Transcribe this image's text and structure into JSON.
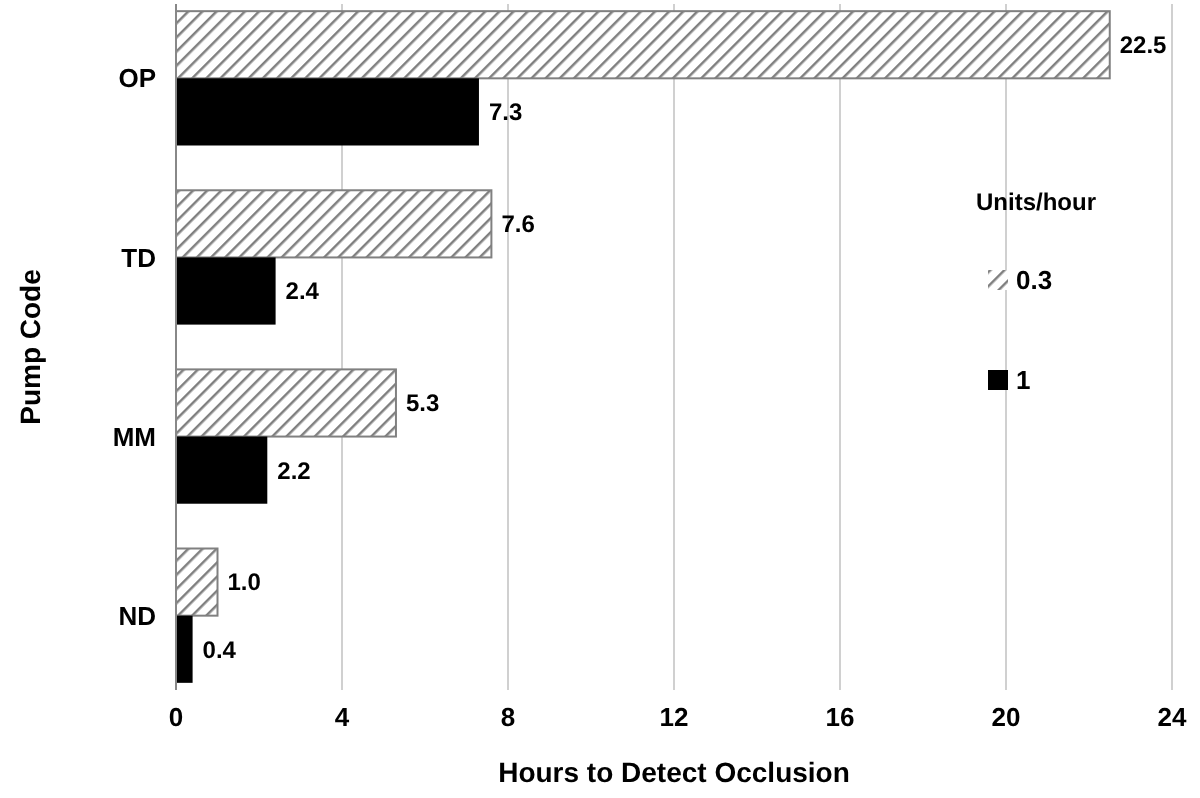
{
  "chart_data": {
    "type": "bar",
    "orientation": "horizontal",
    "xlabel": "Hours to Detect Occlusion",
    "ylabel": "Pump Code",
    "legend_title": "Units/hour",
    "categories": [
      "OP",
      "TD",
      "MM",
      "ND"
    ],
    "series": [
      {
        "name": "0.3",
        "color": "#808080",
        "values": [
          22.5,
          7.6,
          5.3,
          1.0
        ]
      },
      {
        "name": "1",
        "color": "#000000",
        "values": [
          7.3,
          2.4,
          2.2,
          0.4
        ]
      }
    ],
    "value_labels": [
      [
        "22.5",
        "7.6",
        "5.3",
        "1.0"
      ],
      [
        "7.3",
        "2.4",
        "2.2",
        "0.4"
      ]
    ],
    "xlim": [
      0,
      24
    ],
    "xticks": [
      0,
      4,
      8,
      12,
      16,
      20,
      24
    ],
    "grid": "x",
    "legend": "right"
  }
}
